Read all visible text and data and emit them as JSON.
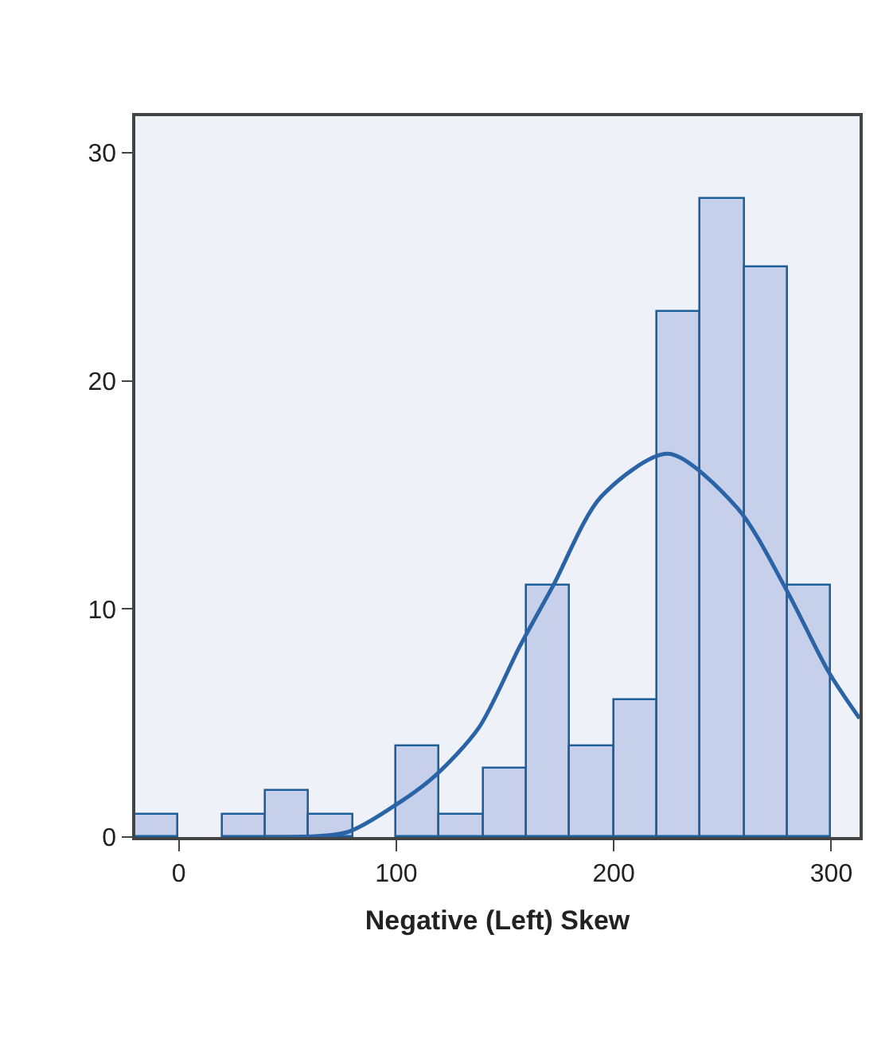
{
  "chart_data": {
    "type": "histogram",
    "xlabel": "Negative (Left) Skew",
    "bins": [
      -20,
      0,
      20,
      40,
      60,
      80,
      100,
      120,
      140,
      160,
      180,
      200,
      220,
      240,
      260,
      280,
      300
    ],
    "values": [
      1,
      0,
      1,
      2,
      1,
      0,
      4,
      1,
      3,
      11,
      4,
      6,
      23,
      28,
      25,
      11
    ],
    "color": "#c7d0ea",
    "series": [
      {
        "type": "line",
        "color": "#2a64a6",
        "x": [
          40,
          77,
          98,
          118,
          138,
          157,
          172,
          194,
          225,
          257,
          279,
          299,
          313
        ],
        "values": [
          0,
          0.2,
          1.3,
          2.7,
          4.8,
          8.4,
          11,
          14.9,
          16.8,
          14.4,
          10.9,
          7.2,
          5.2
        ]
      }
    ],
    "xlim": [
      -20,
      313
    ],
    "ylim": [
      0,
      31.6
    ],
    "xticks": [
      0,
      100,
      200,
      300
    ],
    "yticks": [
      0,
      10,
      20,
      30
    ],
    "grid": false
  }
}
